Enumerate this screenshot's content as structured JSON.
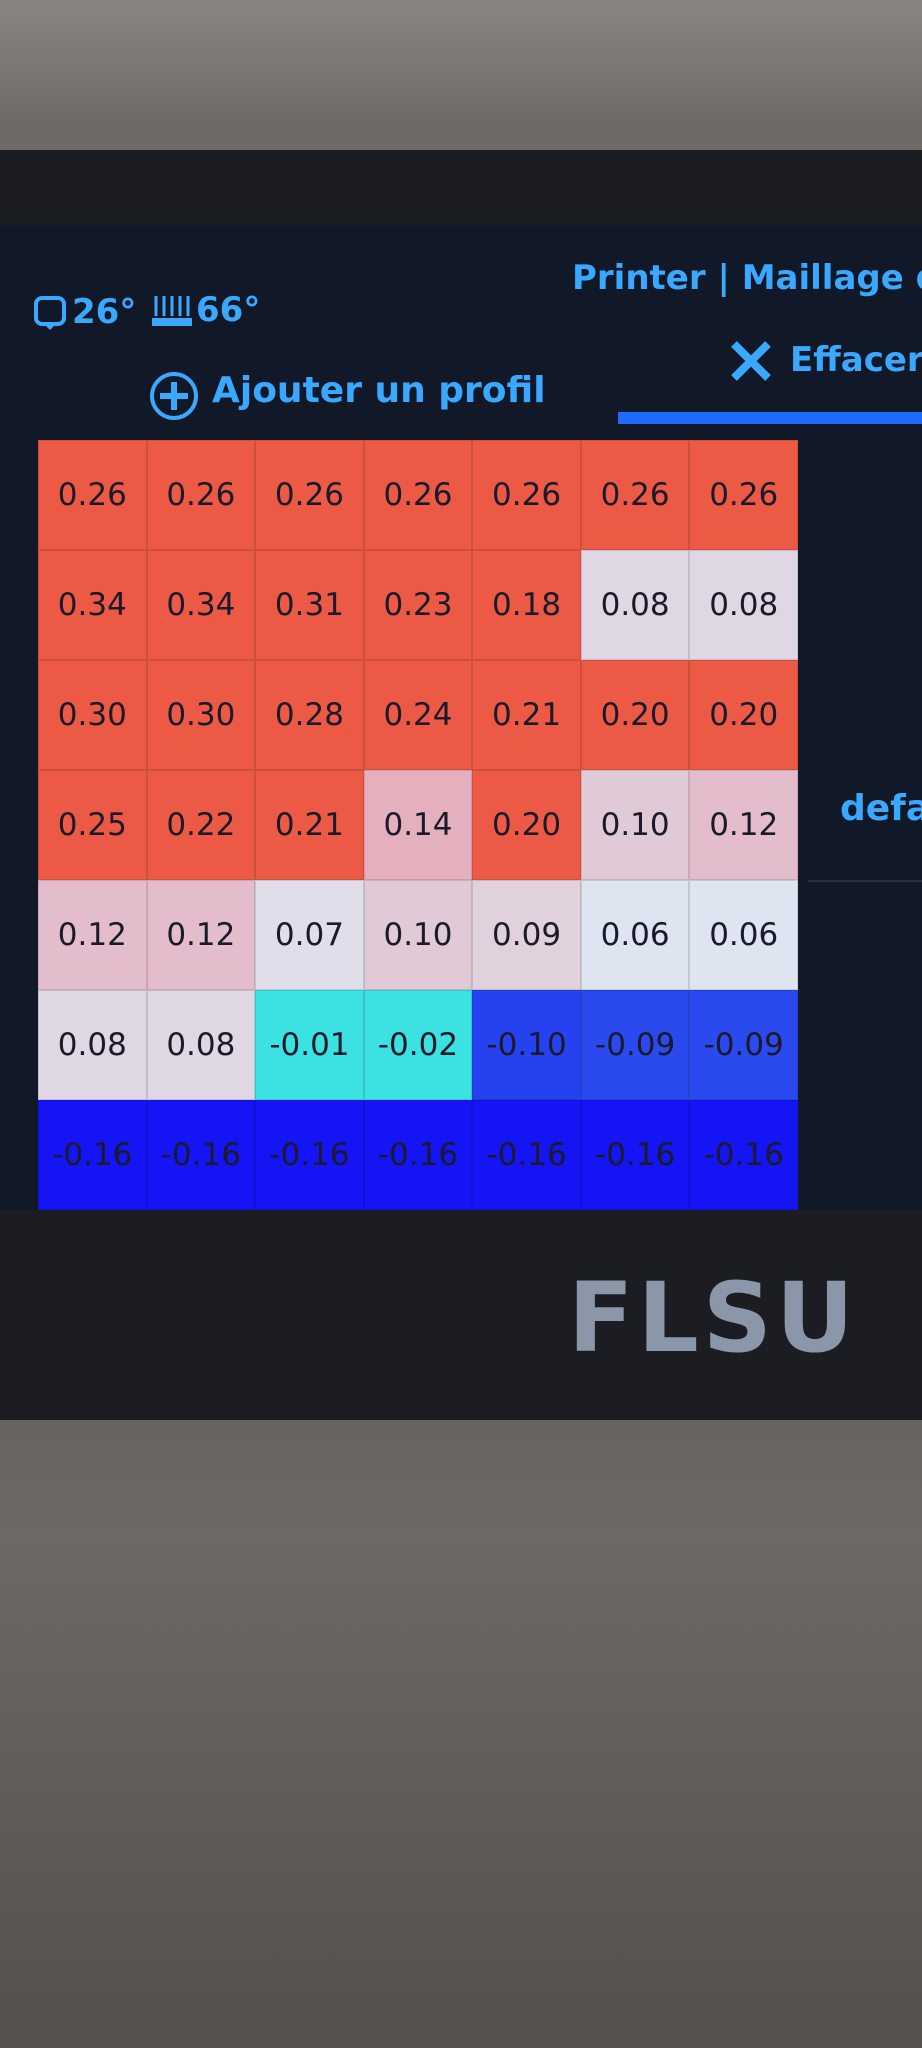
{
  "header": {
    "nozzle_temp": "26°",
    "bed_temp": "66°",
    "title": "Printer | Maillage du"
  },
  "actions": {
    "add_profile": "Ajouter un profil",
    "clear": "Effacer"
  },
  "profile": "defa",
  "mesh": {
    "rows": [
      [
        "0.26",
        "0.26",
        "0.26",
        "0.26",
        "0.26",
        "0.26",
        "0.26"
      ],
      [
        "0.34",
        "0.34",
        "0.31",
        "0.23",
        "0.18",
        "0.08",
        "0.08"
      ],
      [
        "0.30",
        "0.30",
        "0.28",
        "0.24",
        "0.21",
        "0.20",
        "0.20"
      ],
      [
        "0.25",
        "0.22",
        "0.21",
        "0.14",
        "0.20",
        "0.10",
        "0.12"
      ],
      [
        "0.12",
        "0.12",
        "0.07",
        "0.10",
        "0.09",
        "0.06",
        "0.06"
      ],
      [
        "0.08",
        "0.08",
        "-0.01",
        "-0.02",
        "-0.10",
        "-0.09",
        "-0.09"
      ],
      [
        "-0.16",
        "-0.16",
        "-0.16",
        "-0.16",
        "-0.16",
        "-0.16",
        "-0.16"
      ]
    ]
  },
  "brand": "FLSU"
}
